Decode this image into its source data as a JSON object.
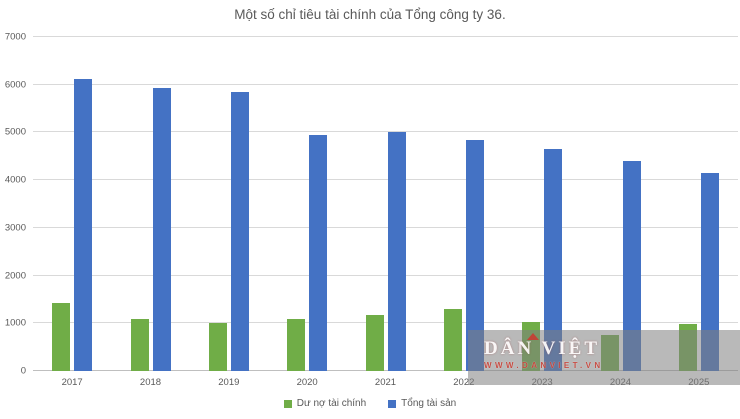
{
  "title": "Một số chỉ tiêu tài chính của Tổng công ty 36.",
  "chart_data": {
    "type": "bar",
    "categories": [
      "2017",
      "2018",
      "2019",
      "2020",
      "2021",
      "2022",
      "2023",
      "2024",
      "2025"
    ],
    "series": [
      {
        "name": "Dư nợ tài chính",
        "color": "#70ad47",
        "values": [
          1430,
          1080,
          1000,
          1100,
          1170,
          1290,
          1030,
          750,
          990
        ]
      },
      {
        "name": "Tổng tài sản",
        "color": "#4472c4",
        "values": [
          6120,
          5930,
          5840,
          4940,
          5000,
          4850,
          4650,
          4400,
          4150
        ]
      }
    ],
    "xlabel": "",
    "ylabel": "",
    "ylim": [
      0,
      7000
    ],
    "ytick_step": 1000,
    "grid": true,
    "legend_position": "bottom"
  },
  "watermark": {
    "title": "DÂN VIỆT",
    "url": "WWW.DANVIET.VN"
  },
  "colors": {
    "series_green": "#70ad47",
    "series_blue": "#4472c4",
    "gridline": "#d9d9d9",
    "axis_line": "#bfbfbf",
    "text": "#595959",
    "watermark_overlay": "rgba(128,128,128,0.55)",
    "watermark_red": "#c33c32"
  }
}
